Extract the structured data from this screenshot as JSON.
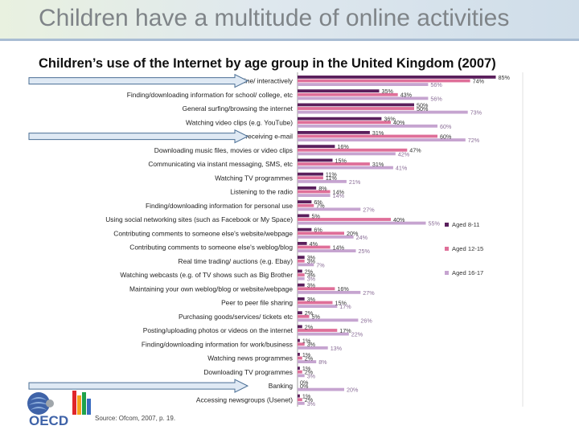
{
  "header": {
    "title": "Children have a multitude of online activities"
  },
  "source": "Source: Ofcom, 2007, p. 19.",
  "logo": {
    "text": "OECD"
  },
  "colors": {
    "aged_8_11": "#5a1f5c",
    "aged_12_15": "#df6f99",
    "aged_16_17": "#c6a4d0",
    "arrow_fill": "#dfe9f4",
    "arrow_stroke": "#4b6f95"
  },
  "chart_data": {
    "type": "bar",
    "orientation": "horizontal",
    "title": "Children’s use of the Internet by age group in the United Kingdom (2007)",
    "xlim": [
      0,
      100
    ],
    "categories": [
      "Playing games online/ interactively",
      "Finding/downloading information for school/ college, etc",
      "General surfing/browsing the internet",
      "Watching video clips (e.g. YouTube)",
      "Sending and receiving e-mail",
      "Downloading music files, movies or video clips",
      "Communicating via instant messaging, SMS, etc",
      "Watching TV programmes",
      "Listening to the radio",
      "Finding/downloading information for personal use",
      "Using social networking sites (such as Facebook or My Space)",
      "Contributing comments to someone else's website/webpage",
      "Contributing comments to someone else's weblog/blog",
      "Real time trading/ auctions (e.g. Ebay)",
      "Watching webcasts (e.g. of TV shows such as Big Brother",
      "Maintaining your own weblog/blog or website/webpage",
      "Peer to peer file sharing",
      "Purchasing goods/services/ tickets etc",
      "Posting/uploading photos or videos on the internet",
      "Finding/downloading information for work/business",
      "Watching news programmes",
      "Downloading TV programmes",
      "Banking",
      "Accessing newsgroups (Usenet)"
    ],
    "series": [
      {
        "name": "Aged 8-11",
        "values": [
          85,
          35,
          50,
          36,
          31,
          16,
          15,
          11,
          8,
          6,
          5,
          6,
          4,
          3,
          2,
          3,
          3,
          2,
          2,
          1,
          1,
          1,
          0,
          1
        ]
      },
      {
        "name": "Aged 12-15",
        "values": [
          74,
          43,
          50,
          40,
          60,
          47,
          31,
          11,
          14,
          7,
          40,
          20,
          14,
          3,
          3,
          16,
          15,
          5,
          17,
          3,
          2,
          2,
          0,
          2
        ]
      },
      {
        "name": "Aged 16-17",
        "values": [
          56,
          56,
          73,
          60,
          72,
          42,
          41,
          21,
          14,
          27,
          55,
          24,
          25,
          7,
          3,
          27,
          17,
          26,
          22,
          13,
          8,
          3,
          20,
          3
        ]
      }
    ],
    "legend": {
      "position": "right"
    },
    "highlighted": [
      "Playing games online/ interactively",
      "Sending and receiving e-mail",
      "Banking"
    ]
  }
}
